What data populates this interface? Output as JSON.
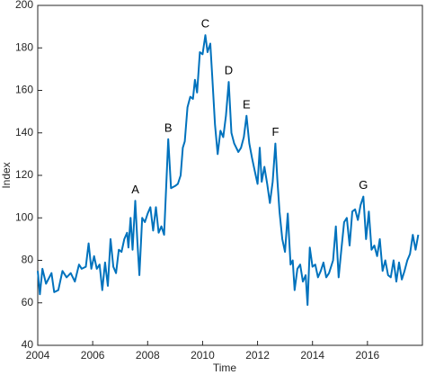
{
  "chart_data": {
    "type": "line",
    "xlabel": "Time",
    "ylabel": "Index",
    "color": "#0072bd",
    "xlim": [
      2004,
      2018
    ],
    "xticks": [
      2004,
      2006,
      2008,
      2010,
      2012,
      2014,
      2016
    ],
    "ylim": [
      40,
      200
    ],
    "yticks": [
      40,
      60,
      80,
      100,
      120,
      140,
      160,
      180,
      200
    ],
    "x": [
      2004.0,
      2004.08,
      2004.17,
      2004.3,
      2004.5,
      2004.6,
      2004.75,
      2004.9,
      2005.05,
      2005.2,
      2005.35,
      2005.5,
      2005.6,
      2005.75,
      2005.85,
      2005.95,
      2006.05,
      2006.15,
      2006.25,
      2006.35,
      2006.45,
      2006.55,
      2006.65,
      2006.75,
      2006.85,
      2006.95,
      2007.05,
      2007.15,
      2007.25,
      2007.3,
      2007.38,
      2007.45,
      2007.55,
      2007.62,
      2007.7,
      2007.8,
      2007.9,
      2008.0,
      2008.1,
      2008.2,
      2008.3,
      2008.4,
      2008.5,
      2008.6,
      2008.75,
      2008.85,
      2009.0,
      2009.1,
      2009.2,
      2009.28,
      2009.35,
      2009.45,
      2009.55,
      2009.65,
      2009.72,
      2009.8,
      2009.9,
      2010.0,
      2010.1,
      2010.18,
      2010.28,
      2010.35,
      2010.45,
      2010.55,
      2010.65,
      2010.75,
      2010.85,
      2010.95,
      2011.05,
      2011.15,
      2011.3,
      2011.4,
      2011.5,
      2011.6,
      2011.7,
      2011.8,
      2011.9,
      2012.0,
      2012.08,
      2012.15,
      2012.25,
      2012.35,
      2012.45,
      2012.55,
      2012.65,
      2012.72,
      2012.8,
      2012.9,
      2013.0,
      2013.1,
      2013.2,
      2013.28,
      2013.35,
      2013.45,
      2013.55,
      2013.65,
      2013.75,
      2013.82,
      2013.9,
      2014.0,
      2014.1,
      2014.2,
      2014.3,
      2014.4,
      2014.5,
      2014.6,
      2014.75,
      2014.85,
      2014.95,
      2015.05,
      2015.15,
      2015.25,
      2015.35,
      2015.45,
      2015.55,
      2015.65,
      2015.75,
      2015.85,
      2015.95,
      2016.05,
      2016.15,
      2016.25,
      2016.35,
      2016.45,
      2016.55,
      2016.65,
      2016.75,
      2016.85,
      2016.95,
      2017.05,
      2017.15,
      2017.25,
      2017.35,
      2017.45,
      2017.55,
      2017.65,
      2017.75,
      2017.85
    ],
    "values": [
      75,
      64,
      76,
      69,
      74,
      65,
      66,
      75,
      72,
      74,
      70,
      78,
      76,
      77,
      88,
      76,
      82,
      76,
      78,
      66,
      79,
      68,
      90,
      77,
      74,
      85,
      84,
      90,
      93,
      86,
      100,
      85,
      108,
      90,
      73,
      100,
      98,
      102,
      105,
      94,
      105,
      93,
      96,
      92,
      137,
      114,
      115,
      116,
      120,
      133,
      136,
      152,
      157,
      156,
      165,
      159,
      178,
      177,
      186,
      178,
      182,
      167,
      144,
      130,
      141,
      138,
      148,
      164,
      140,
      135,
      131,
      133,
      138,
      148,
      135,
      128,
      122,
      116,
      133,
      117,
      124,
      116,
      107,
      117,
      135,
      118,
      103,
      90,
      84,
      102,
      78,
      80,
      66,
      76,
      78,
      70,
      73,
      59,
      86,
      77,
      78,
      72,
      75,
      79,
      72,
      74,
      80,
      96,
      72,
      85,
      98,
      100,
      87,
      103,
      104,
      99,
      106,
      110,
      90,
      103,
      85,
      87,
      82,
      90,
      75,
      80,
      73,
      72,
      80,
      70,
      79,
      71,
      75,
      80,
      83,
      92,
      85,
      92
    ],
    "annotations": [
      {
        "text": "A",
        "x": 2007.55,
        "y": 108
      },
      {
        "text": "B",
        "x": 2008.75,
        "y": 137
      },
      {
        "text": "C",
        "x": 2010.1,
        "y": 186
      },
      {
        "text": "D",
        "x": 2010.95,
        "y": 164
      },
      {
        "text": "E",
        "x": 2011.6,
        "y": 148
      },
      {
        "text": "F",
        "x": 2012.65,
        "y": 135
      },
      {
        "text": "G",
        "x": 2015.85,
        "y": 110
      }
    ]
  }
}
